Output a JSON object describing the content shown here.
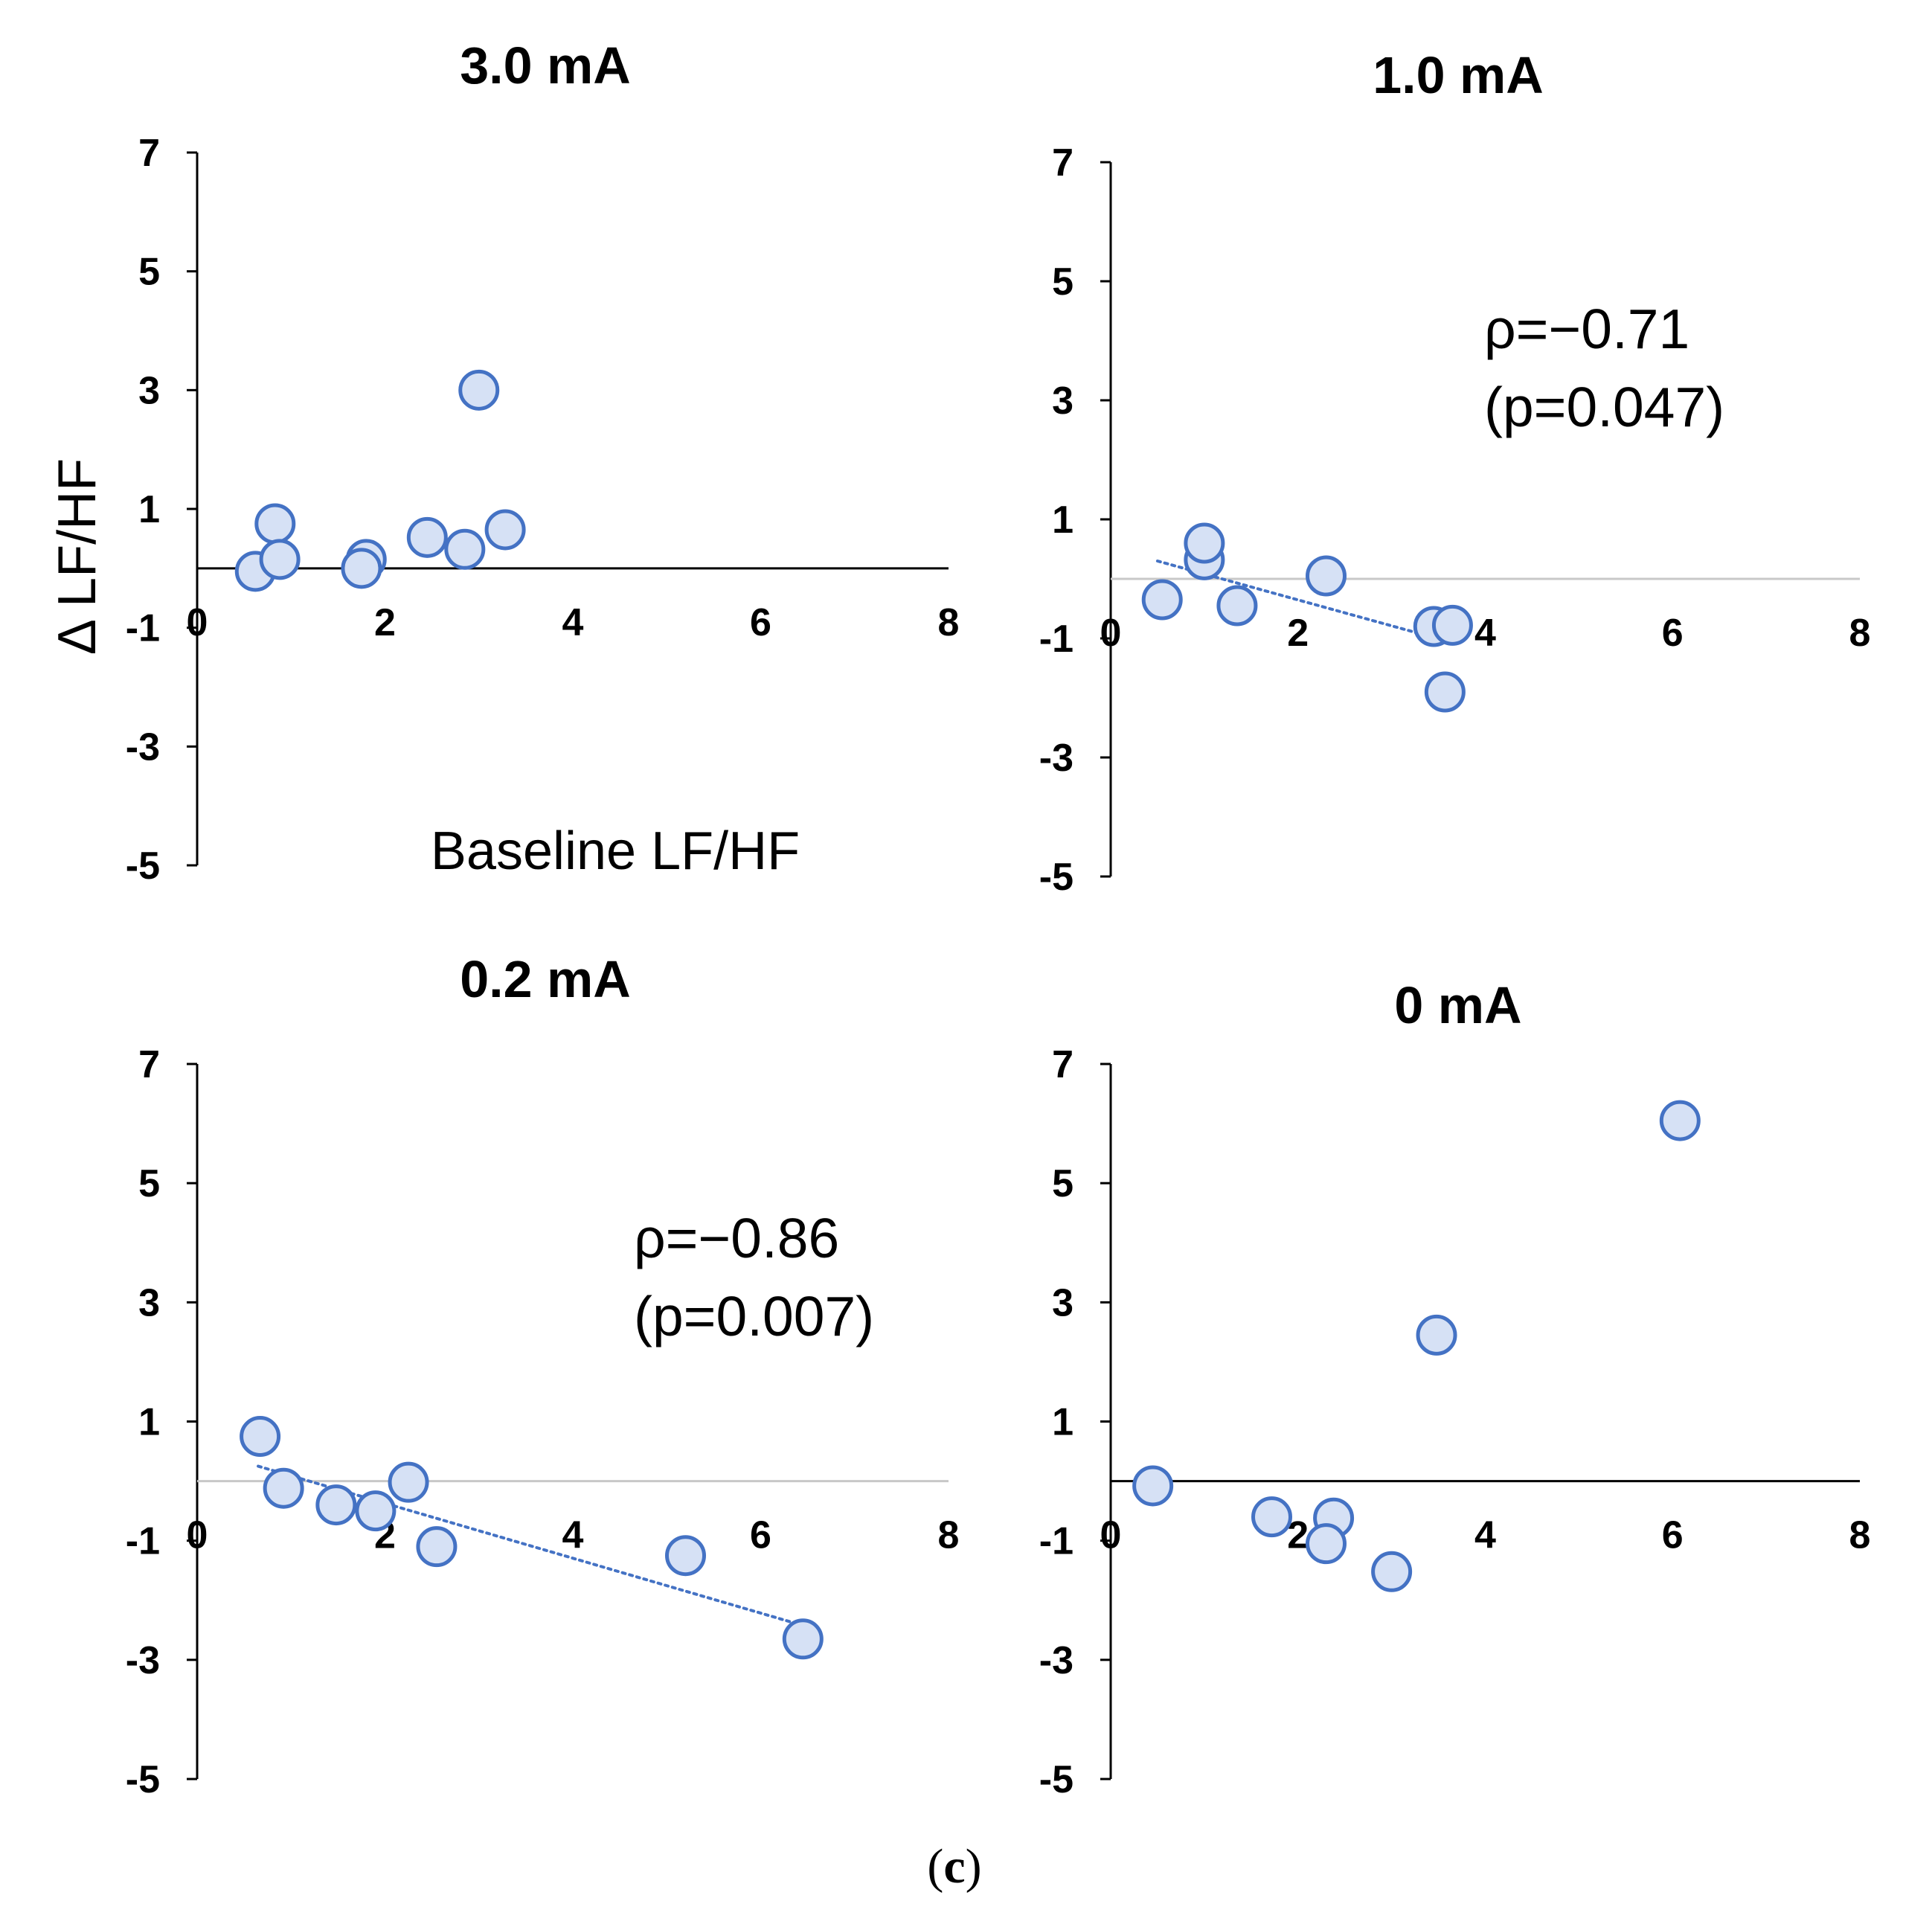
{
  "figure": {
    "panel_label_open": "(",
    "panel_label_letter": "c",
    "panel_label_close": ")"
  },
  "chart_data": [
    {
      "type": "scatter",
      "title": "3.0 mA",
      "xlabel": "Baseline LF/HF",
      "ylabel": "Δ LF/HF",
      "xlim": [
        0,
        8
      ],
      "ylim": [
        -5,
        7
      ],
      "x_ticks": [
        "0",
        "2",
        "4",
        "6",
        "8"
      ],
      "y_ticks": [
        "7",
        "5",
        "3",
        "1",
        "-1",
        "-3",
        "-5"
      ],
      "zero_line": "dark",
      "trendline": null,
      "annotation": null,
      "points": [
        {
          "x": 0.62,
          "y": -0.05
        },
        {
          "x": 0.83,
          "y": 0.75
        },
        {
          "x": 0.88,
          "y": 0.15
        },
        {
          "x": 1.8,
          "y": 0.15
        },
        {
          "x": 1.75,
          "y": 0.0
        },
        {
          "x": 2.45,
          "y": 0.52
        },
        {
          "x": 2.85,
          "y": 0.32
        },
        {
          "x": 3.0,
          "y": 3.0
        },
        {
          "x": 3.28,
          "y": 0.65
        }
      ]
    },
    {
      "type": "scatter",
      "title": "1.0 mA",
      "xlim": [
        0,
        8
      ],
      "ylim": [
        -5,
        7
      ],
      "x_ticks": [
        "0",
        "2",
        "4",
        "6",
        "8"
      ],
      "y_ticks": [
        "7",
        "5",
        "3",
        "1",
        "-1",
        "-3",
        "-5"
      ],
      "zero_line": "light",
      "trendline": {
        "x": [
          0.5,
          3.6
        ],
        "y": [
          0.3,
          -1.05
        ]
      },
      "annotation": {
        "rho": "ρ=−0.71",
        "p": "(p=0.047)"
      },
      "points": [
        {
          "x": 0.55,
          "y": -0.35
        },
        {
          "x": 1.0,
          "y": 0.32
        },
        {
          "x": 1.0,
          "y": 0.6
        },
        {
          "x": 1.35,
          "y": -0.45
        },
        {
          "x": 2.3,
          "y": 0.05
        },
        {
          "x": 3.45,
          "y": -0.8
        },
        {
          "x": 3.65,
          "y": -0.78
        },
        {
          "x": 3.57,
          "y": -1.9
        }
      ]
    },
    {
      "type": "scatter",
      "title": "0.2 mA",
      "xlim": [
        0,
        8
      ],
      "ylim": [
        -5,
        7
      ],
      "x_ticks": [
        "0",
        "2",
        "4",
        "6",
        "8"
      ],
      "y_ticks": [
        "7",
        "5",
        "3",
        "1",
        "-1",
        "-3",
        "-5"
      ],
      "zero_line": "light",
      "trendline": {
        "x": [
          0.65,
          6.4
        ],
        "y": [
          0.25,
          -2.4
        ]
      },
      "annotation": {
        "rho": "ρ=−0.86",
        "p": "(p=0.007)"
      },
      "points": [
        {
          "x": 0.67,
          "y": 0.75
        },
        {
          "x": 0.92,
          "y": -0.12
        },
        {
          "x": 1.48,
          "y": -0.4
        },
        {
          "x": 1.9,
          "y": -0.5
        },
        {
          "x": 2.25,
          "y": -0.02
        },
        {
          "x": 2.55,
          "y": -1.1
        },
        {
          "x": 5.2,
          "y": -1.25
        },
        {
          "x": 6.45,
          "y": -2.65
        }
      ]
    },
    {
      "type": "scatter",
      "title": "0 mA",
      "xlim": [
        0,
        8
      ],
      "ylim": [
        -5,
        7
      ],
      "x_ticks": [
        "0",
        "2",
        "4",
        "6",
        "8"
      ],
      "y_ticks": [
        "7",
        "5",
        "3",
        "1",
        "-1",
        "-3",
        "-5"
      ],
      "zero_line": "dark",
      "trendline": null,
      "annotation": null,
      "points": [
        {
          "x": 0.45,
          "y": -0.08
        },
        {
          "x": 1.72,
          "y": -0.6
        },
        {
          "x": 2.38,
          "y": -0.62
        },
        {
          "x": 2.3,
          "y": -1.05
        },
        {
          "x": 3.0,
          "y": -1.52
        },
        {
          "x": 3.48,
          "y": 2.45
        },
        {
          "x": 6.08,
          "y": 6.05
        }
      ]
    }
  ]
}
